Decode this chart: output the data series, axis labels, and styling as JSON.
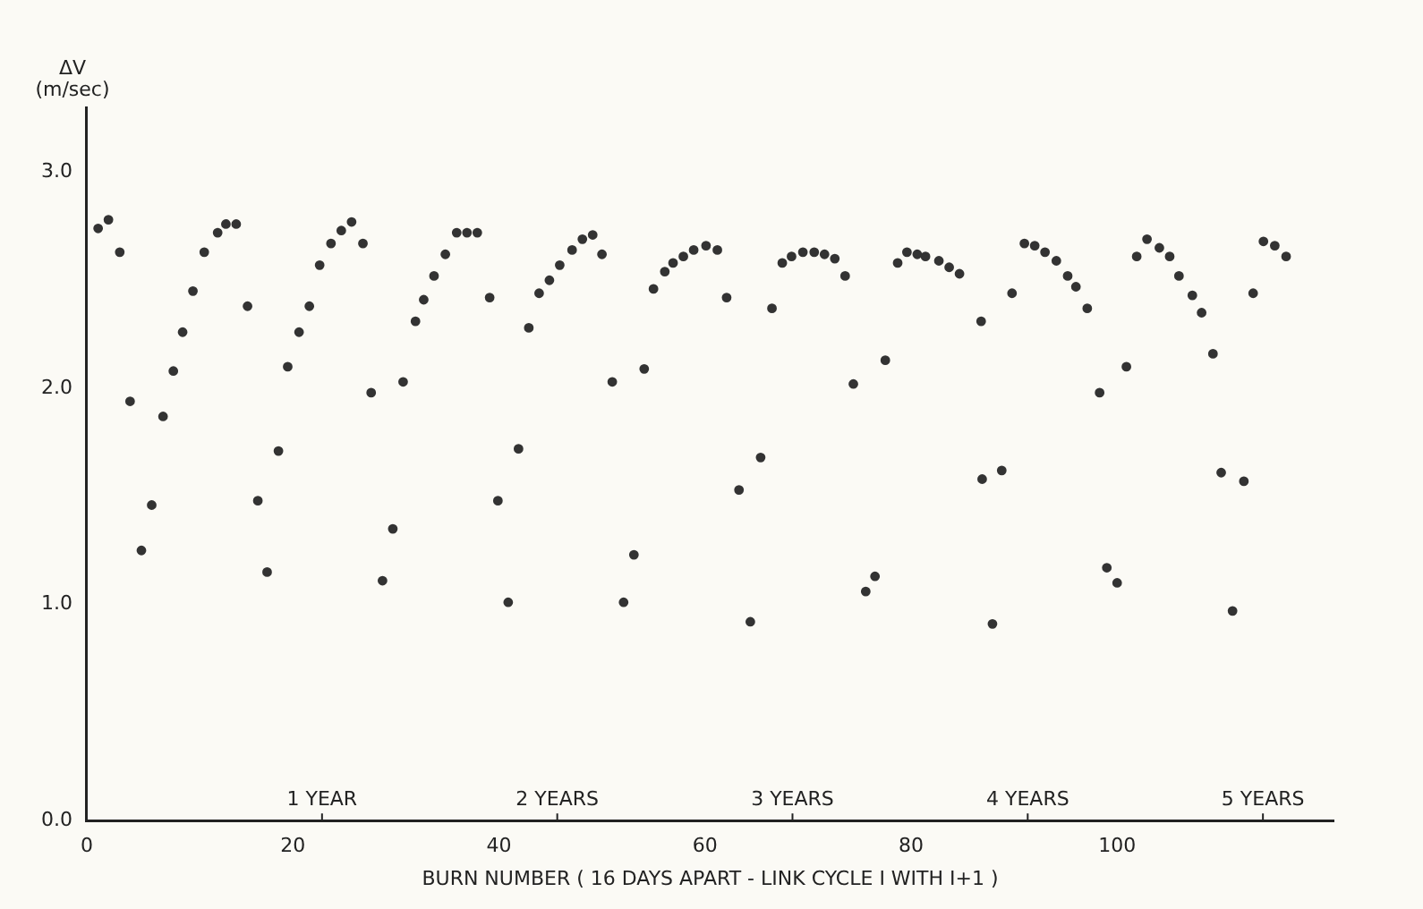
{
  "chart_data": {
    "type": "scatter",
    "xlabel": "BURN NUMBER ( 16 DAYS APART - LINK CYCLE I WITH I+1 )",
    "ylabel": "ΔV (m/sec)",
    "x": [
      1.1,
      2.1,
      3.2,
      4.2,
      5.3,
      6.3,
      7.4,
      8.4,
      9.3,
      10.3,
      11.4,
      12.7,
      13.5,
      14.5,
      15.6,
      16.6,
      17.5,
      18.6,
      19.5,
      20.6,
      21.6,
      22.6,
      23.7,
      24.7,
      25.7,
      26.8,
      27.6,
      28.7,
      29.7,
      30.7,
      31.9,
      32.7,
      33.7,
      34.8,
      35.9,
      36.9,
      37.9,
      39.1,
      39.9,
      40.9,
      41.9,
      42.9,
      43.9,
      44.9,
      45.9,
      47.1,
      48.1,
      49.1,
      50.0,
      51.0,
      52.1,
      53.1,
      54.1,
      55.0,
      56.1,
      56.9,
      57.9,
      58.9,
      60.1,
      61.2,
      62.1,
      63.3,
      64.4,
      65.4,
      66.5,
      67.5,
      68.4,
      69.5,
      70.6,
      71.6,
      72.6,
      73.6,
      74.4,
      75.6,
      76.5,
      77.5,
      78.7,
      79.6,
      80.6,
      81.4,
      82.7,
      83.7,
      84.7,
      86.8,
      86.9,
      87.9,
      88.8,
      89.8,
      91.0,
      92.0,
      93.0,
      94.1,
      95.2,
      96.0,
      97.1,
      98.3,
      99.0,
      100.0,
      100.9,
      101.9,
      102.9,
      104.1,
      105.1,
      106.0,
      107.3,
      108.2,
      109.3,
      110.1,
      111.2,
      112.3,
      113.2,
      114.2,
      115.3,
      116.4
    ],
    "series": [
      {
        "color": "#333333",
        "values": [
          2.74,
          2.78,
          2.63,
          1.94,
          1.25,
          1.46,
          1.87,
          2.08,
          2.26,
          2.45,
          2.63,
          2.72,
          2.76,
          2.76,
          2.38,
          1.48,
          1.15,
          1.71,
          2.1,
          2.26,
          2.38,
          2.57,
          2.67,
          2.73,
          2.77,
          2.67,
          1.98,
          1.11,
          1.35,
          2.03,
          2.31,
          2.41,
          2.52,
          2.62,
          2.72,
          2.72,
          2.72,
          2.42,
          1.48,
          1.01,
          1.72,
          2.28,
          2.44,
          2.5,
          2.57,
          2.64,
          2.69,
          2.71,
          2.62,
          2.03,
          1.01,
          1.23,
          2.09,
          2.46,
          2.54,
          2.58,
          2.61,
          2.64,
          2.66,
          2.64,
          2.42,
          1.53,
          0.92,
          1.68,
          2.37,
          2.58,
          2.61,
          2.63,
          2.63,
          2.62,
          2.6,
          2.52,
          2.02,
          1.06,
          1.13,
          2.13,
          2.58,
          2.63,
          2.62,
          2.61,
          2.59,
          2.56,
          2.53,
          2.31,
          1.58,
          0.91,
          1.62,
          2.44,
          2.67,
          2.66,
          2.63,
          2.59,
          2.52,
          2.47,
          2.37,
          1.98,
          1.17,
          1.1,
          2.1,
          2.61,
          2.69,
          2.65,
          2.61,
          2.52,
          2.43,
          2.35,
          2.16,
          1.61,
          0.97,
          1.57,
          2.44,
          2.68,
          2.66,
          2.61
        ]
      }
    ],
    "xlim": [
      0,
      121
    ],
    "xticks": [
      0,
      20,
      40,
      60,
      80,
      100
    ],
    "ylim": [
      0,
      3.3
    ],
    "yticks": [
      {
        "value": 0,
        "label": "0.0"
      },
      {
        "value": 1,
        "label": "1.0"
      },
      {
        "value": 2,
        "label": "2.0"
      },
      {
        "value": 3,
        "label": "3.0"
      }
    ],
    "x2lim": [
      0,
      5.3
    ],
    "x2ticks": [
      {
        "value": 1,
        "label": "1 YEAR"
      },
      {
        "value": 2,
        "label": "2 YEARS"
      },
      {
        "value": 3,
        "label": "3 YEARS"
      },
      {
        "value": 4,
        "label": "4 YEARS"
      },
      {
        "value": 5,
        "label": "5 YEARS"
      }
    ],
    "grid": false,
    "legend": false,
    "marker": "circle"
  }
}
